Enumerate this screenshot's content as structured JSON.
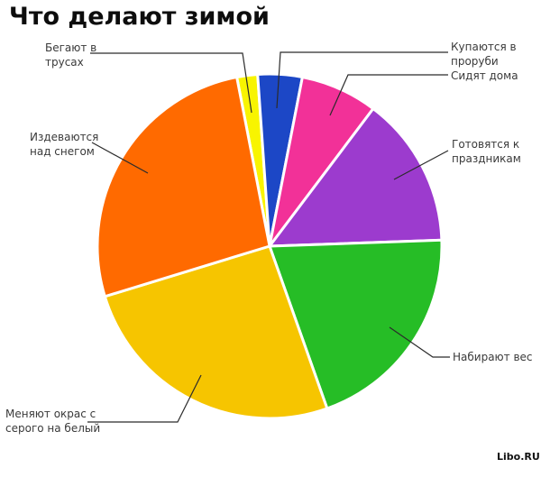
{
  "page": {
    "title": "Что делают зимой",
    "watermark": "Libo.RU",
    "background_color": "#ffffff"
  },
  "chart_data": {
    "type": "pie",
    "title": "Что делают зимой",
    "legend": "none",
    "label_style": "external callouts with elbow leader lines",
    "direction": "clockwise",
    "start_angle_deg_from_north": 349,
    "slices": [
      {
        "label": "Бегают в трусах",
        "color": "#f8f400",
        "degrees": 7,
        "percent": 1.9
      },
      {
        "label": "Купаются в проруби",
        "color": "#1c47c6",
        "degrees": 15,
        "percent": 4.2
      },
      {
        "label": "Сидят дома",
        "color": "#f23198",
        "degrees": 26,
        "percent": 7.2
      },
      {
        "label": "Готовятся к праздникам",
        "color": "#9c3bce",
        "degrees": 51,
        "percent": 14.2
      },
      {
        "label": "Набирают вес",
        "color": "#26bd26",
        "degrees": 72.5,
        "percent": 20.1
      },
      {
        "label": "Меняют окрас с серого на белый",
        "color": "#f6c500",
        "degrees": 92.5,
        "percent": 25.7
      },
      {
        "label": "Издеваются над снегом",
        "color": "#ff6a00",
        "degrees": 96,
        "percent": 26.7
      }
    ]
  }
}
